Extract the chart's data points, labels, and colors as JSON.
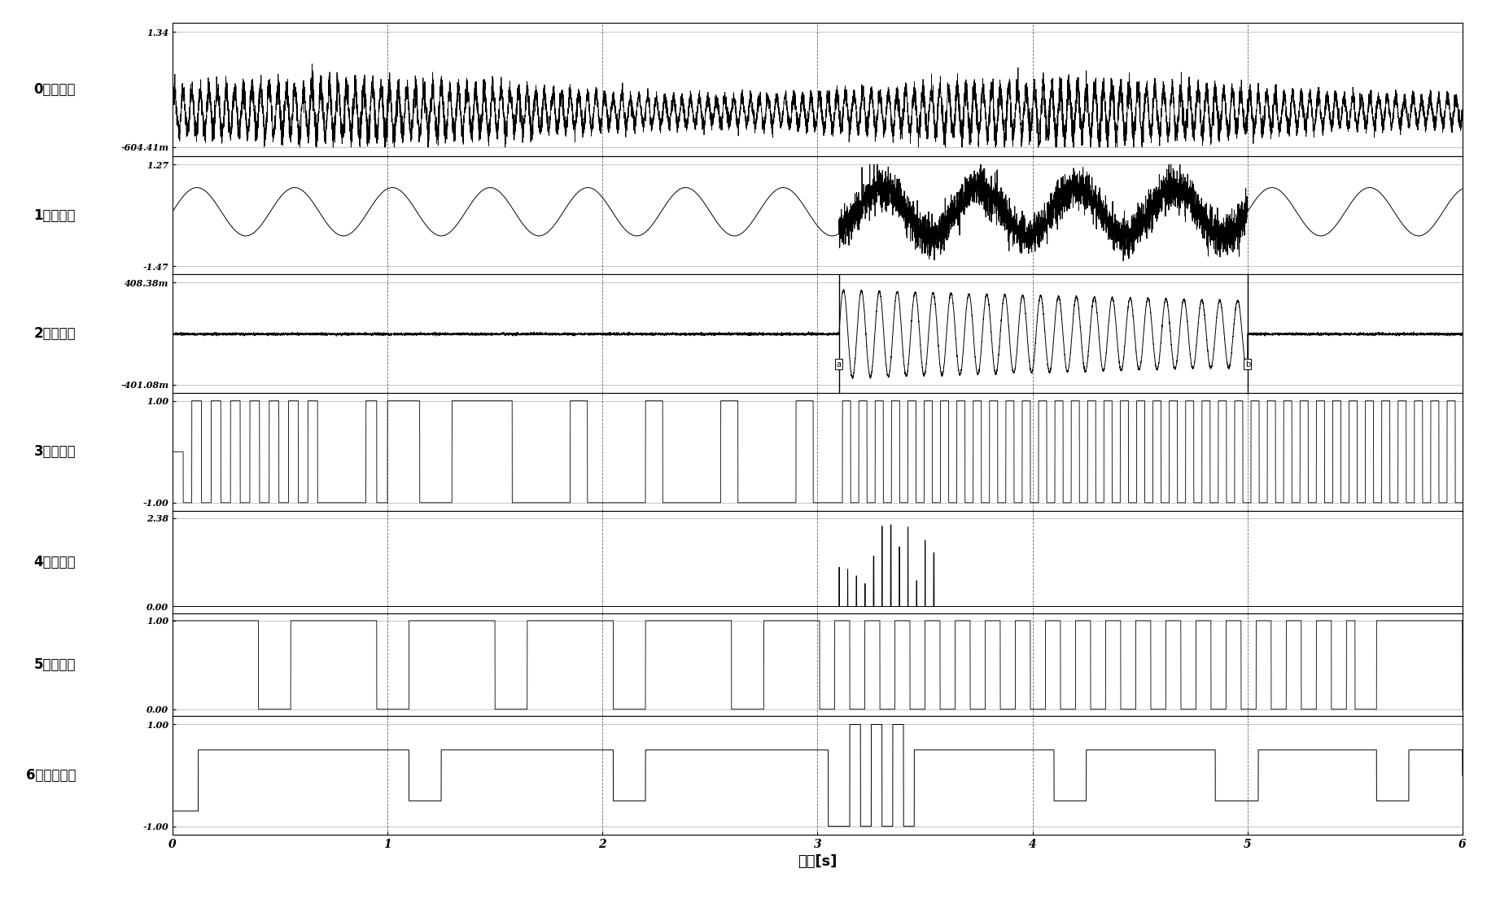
{
  "title": "",
  "xlabel": "时间[s]",
  "xlim": [
    0,
    6
  ],
  "xticks": [
    0,
    1,
    2,
    3,
    4,
    5,
    6
  ],
  "subplots": [
    {
      "label": "0随机冲击",
      "ymax_label": "1.34",
      "ymin_label": "-604.41m",
      "ymax": 1.34,
      "ymin": -0.60441
    },
    {
      "label": "1广义共振",
      "ymax_label": "1.27",
      "ymin_label": "-1.47",
      "ymax": 1.27,
      "ymin": -1.47
    },
    {
      "label": "2振动滤波",
      "ymax_label": "408.38m",
      "ymin_label": "-401.08m",
      "ymax": 0.40838,
      "ymin": -0.40108
    },
    {
      "label": "3振动量化",
      "ymax_label": "1.00",
      "ymin_label": "-1.00",
      "ymax": 1.0,
      "ymin": -1.0
    },
    {
      "label": "4开闭冲击",
      "ymax_label": "2.38",
      "ymin_label": "0.00",
      "ymax": 2.38,
      "ymin": 0.0
    },
    {
      "label": "5冲击量化",
      "ymax_label": "1.00",
      "ymin_label": "0.00",
      "ymax": 1.0,
      "ymin": 0.0
    },
    {
      "label": "6量化相对积",
      "ymax_label": "1.00",
      "ymin_label": "-1.00",
      "ymax": 1.0,
      "ymin": -1.0
    }
  ],
  "dashed_lines_x": [
    1.0,
    2.0,
    3.0,
    4.0,
    5.0
  ],
  "event_a_x": 3.1,
  "event_b_x": 5.0,
  "background_color": "#ffffff",
  "line_color": "#000000",
  "label_font_size": 12,
  "tick_font_size": 8
}
